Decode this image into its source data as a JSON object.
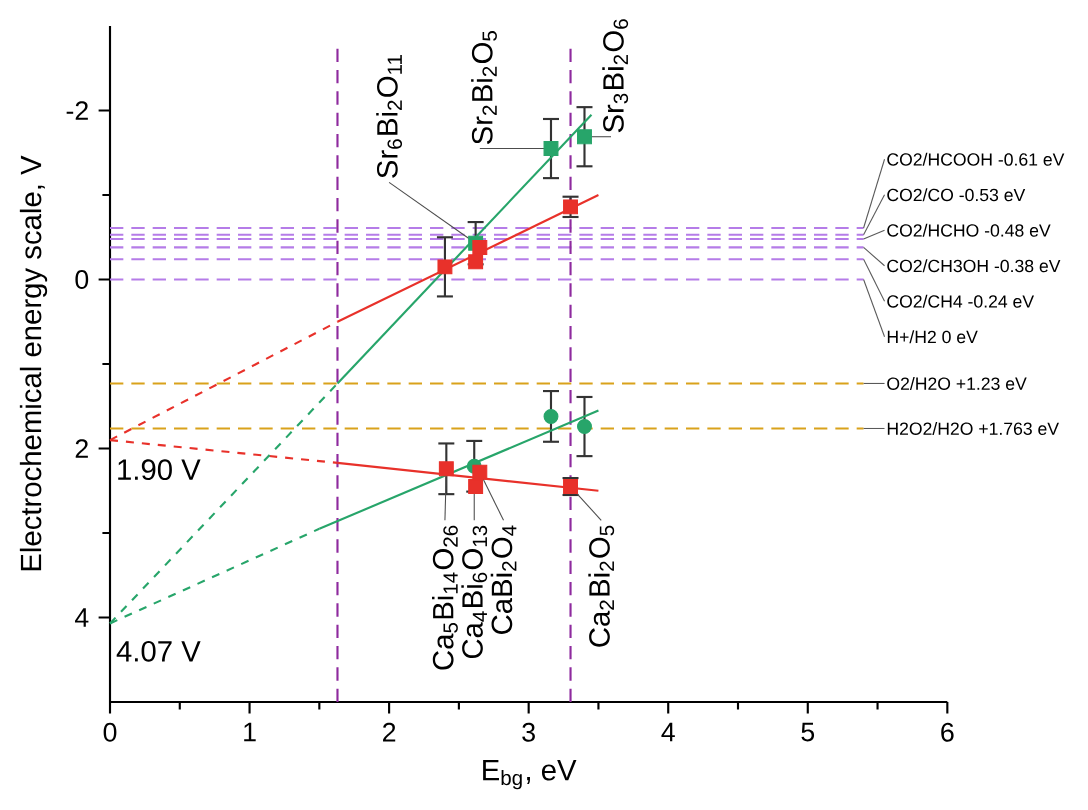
{
  "chart_data": {
    "type": "scatter",
    "xlabel": "E$_{bg}$, eV",
    "ylabel": "Electrochemical energy scale, V",
    "xlim": [
      0,
      6
    ],
    "xticks": [
      0,
      1,
      2,
      3,
      4,
      5,
      6
    ],
    "ylim": [
      5,
      -3
    ],
    "yticks": [
      -2,
      0,
      2,
      4
    ],
    "grid": false,
    "series": [
      {
        "marker": "square",
        "color": "#e8312a",
        "x": [
          2.4,
          2.62,
          2.65,
          3.3
        ],
        "values": [
          -0.15,
          -0.21,
          -0.38,
          -0.86
        ],
        "errors": [
          0.35,
          null,
          null,
          0.12
        ]
      },
      {
        "marker": "square",
        "color": "#27a56a",
        "x": [
          2.62,
          3.16,
          3.4
        ],
        "values": [
          -0.43,
          -1.55,
          -1.69
        ],
        "errors": [
          0.25,
          0.35,
          0.35
        ]
      },
      {
        "marker": "square",
        "color": "#e8312a",
        "x": [
          2.41,
          2.62,
          2.65,
          3.3
        ],
        "values": [
          2.24,
          2.45,
          2.28,
          2.45
        ],
        "errors": [
          0.3,
          null,
          null,
          0.1
        ]
      },
      {
        "marker": "circle",
        "color": "#27a56a",
        "x": [
          2.61,
          3.16,
          3.4
        ],
        "values": [
          2.21,
          1.62,
          1.74
        ],
        "errors": [
          0.3,
          0.3,
          0.35
        ]
      },
      {
        "type": "line",
        "marker": "none",
        "line_style": "dashed",
        "color": "#e8312a",
        "x": [
          0,
          1.63
        ],
        "values": [
          1.9,
          0.5
        ]
      },
      {
        "type": "line",
        "marker": "none",
        "line_style": "solid",
        "color": "#e8312a",
        "x": [
          1.63,
          3.5
        ],
        "values": [
          0.5,
          -1.0
        ]
      },
      {
        "type": "line",
        "marker": "none",
        "line_style": "dashed",
        "color": "#e8312a",
        "x": [
          0,
          1.63
        ],
        "values": [
          1.9,
          2.17
        ]
      },
      {
        "type": "line",
        "marker": "none",
        "line_style": "solid",
        "color": "#e8312a",
        "x": [
          1.63,
          3.5
        ],
        "values": [
          2.17,
          2.5
        ]
      },
      {
        "type": "line",
        "marker": "none",
        "line_style": "dashed",
        "color": "#27a56a",
        "x": [
          0,
          1.63
        ],
        "values": [
          4.07,
          1.23
        ]
      },
      {
        "type": "line",
        "marker": "none",
        "line_style": "solid",
        "color": "#27a56a",
        "x": [
          1.63,
          3.45
        ],
        "values": [
          1.23,
          -1.95
        ]
      },
      {
        "type": "line",
        "marker": "none",
        "line_style": "dashed",
        "color": "#27a56a",
        "x": [
          0,
          1.5
        ],
        "values": [
          4.07,
          2.95
        ]
      },
      {
        "type": "line",
        "marker": "none",
        "line_style": "solid",
        "color": "#27a56a",
        "x": [
          1.5,
          3.5
        ],
        "values": [
          2.95,
          1.55
        ]
      }
    ],
    "ref_lines": [
      {
        "axis": "y",
        "value": -0.61,
        "label": "CO2/HCOOH -0.61 eV",
        "color": "#b57ce8",
        "line_style": "dashed"
      },
      {
        "axis": "y",
        "value": -0.53,
        "label": "CO2/CO -0.53 eV",
        "color": "#b57ce8",
        "line_style": "dashed"
      },
      {
        "axis": "y",
        "value": -0.48,
        "label": "CO2/HCHO -0.48 eV",
        "color": "#b57ce8",
        "line_style": "dashed"
      },
      {
        "axis": "y",
        "value": -0.38,
        "label": "CO2/CH3OH -0.38 eV",
        "color": "#b57ce8",
        "line_style": "dashed"
      },
      {
        "axis": "y",
        "value": -0.24,
        "label": "CO2/CH4 -0.24 eV",
        "color": "#b57ce8",
        "line_style": "dashed"
      },
      {
        "axis": "y",
        "value": 0,
        "label": "H+/H2 0 eV",
        "color": "#b57ce8",
        "line_style": "dashed"
      },
      {
        "axis": "y",
        "value": 1.23,
        "label": "O2/H2O +1.23 eV",
        "color": "#d9a21b",
        "line_style": "dashed"
      },
      {
        "axis": "y",
        "value": 1.763,
        "label": "H2O2/H2O +1.763 eV",
        "color": "#d9a21b",
        "line_style": "dashed"
      },
      {
        "axis": "x",
        "value": 1.63,
        "color": "#8e2a9e",
        "line_style": "dashed"
      },
      {
        "axis": "x",
        "value": 3.3,
        "color": "#8e2a9e",
        "line_style": "dashed"
      }
    ],
    "annotations": [
      {
        "text": "Sr$_{6}$Bi$_{2}$O$_{11}$",
        "x": 2.62,
        "y": -0.43
      },
      {
        "text": "Sr$_{2}$Bi$_{2}$O$_{5}$",
        "x": 3.16,
        "y": -1.55
      },
      {
        "text": "Sr$_{3}$Bi$_{2}$O$_{6}$",
        "x": 3.4,
        "y": -1.69
      },
      {
        "text": "Ca$_{5}$Bi$_{14}$O$_{26}$",
        "x": 2.41,
        "y": 2.24
      },
      {
        "text": "Ca$_{4}$Bi$_{6}$O$_{13}$",
        "x": 2.61,
        "y": 2.21
      },
      {
        "text": "CaBi$_{2}$O$_{4}$",
        "x": 2.65,
        "y": 2.28
      },
      {
        "text": "Ca$_{2}$Bi$_{2}$O$_{5}$",
        "x": 3.3,
        "y": 2.45
      },
      {
        "text": "1.90 V",
        "x": 0,
        "y": 1.9
      },
      {
        "text": "4.07 V",
        "x": 0,
        "y": 4.07
      }
    ]
  }
}
